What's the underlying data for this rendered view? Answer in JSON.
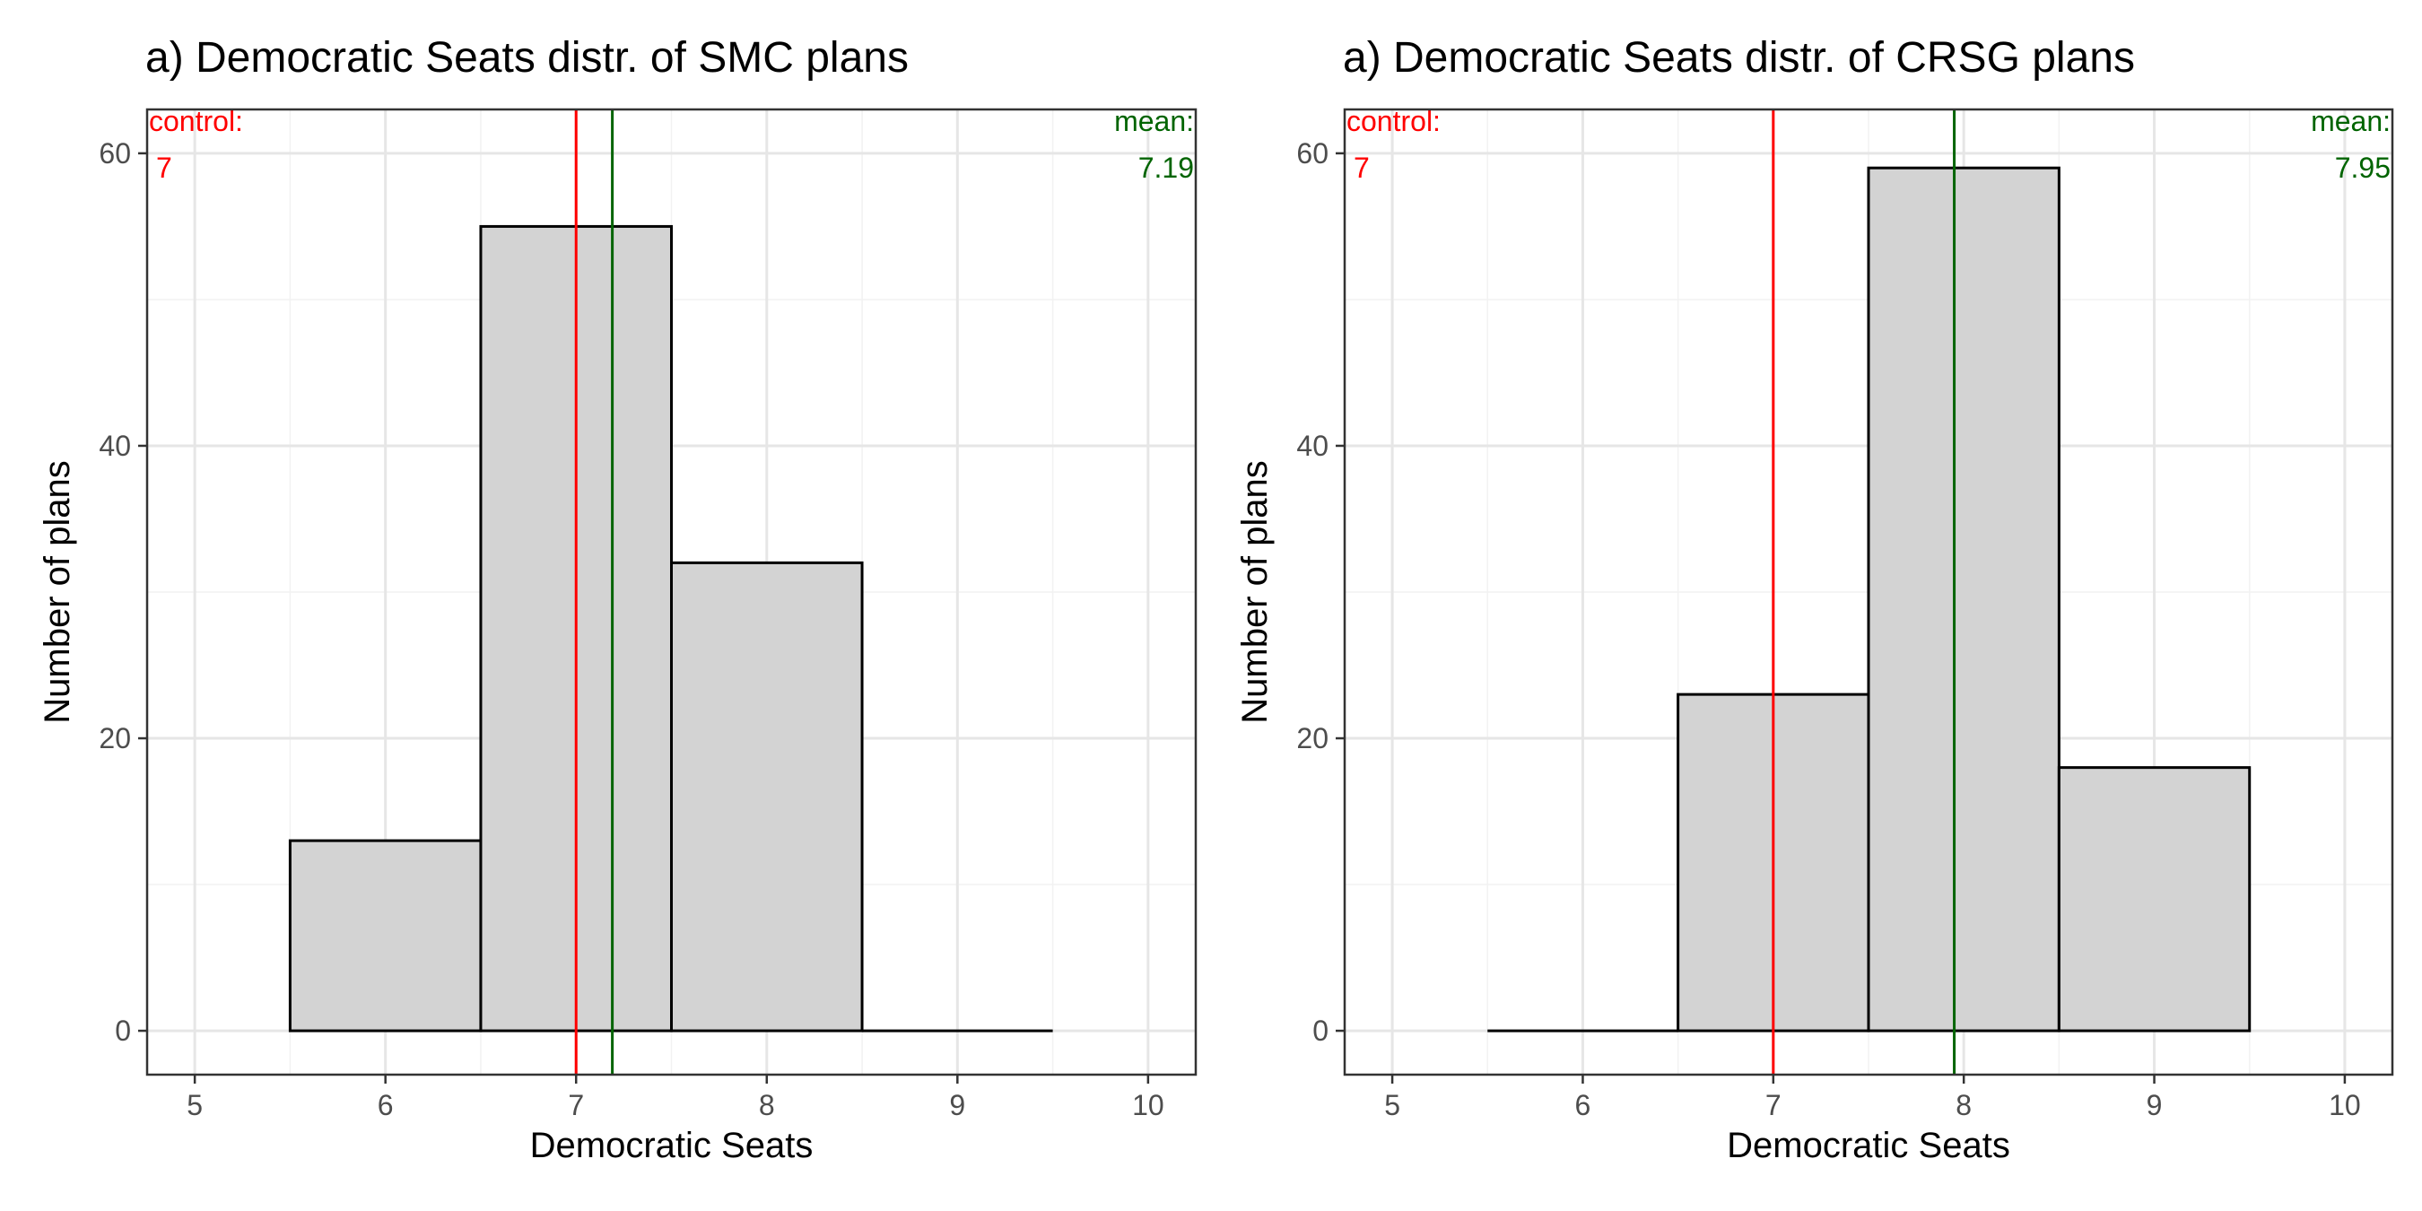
{
  "chart_data": [
    {
      "type": "bar",
      "title": "a) Democratic Seats distr. of SMC plans",
      "xlabel": "Democratic Seats",
      "ylabel": "Number of plans",
      "xlim": [
        4.75,
        10.25
      ],
      "ylim": [
        -3,
        63
      ],
      "xticks": [
        "5",
        "6",
        "7",
        "8",
        "9",
        "10"
      ],
      "yticks": [
        "0",
        "20",
        "40",
        "60"
      ],
      "bin_width": 1,
      "bins": [
        {
          "center": 6,
          "count": 13
        },
        {
          "center": 7,
          "count": 55
        },
        {
          "center": 8,
          "count": 32
        },
        {
          "center": 9,
          "count": 0
        }
      ],
      "vlines": [
        {
          "label": "control:",
          "value_label": "7",
          "x": 7,
          "color": "#ff0000",
          "position": "left"
        },
        {
          "label": "mean:",
          "value_label": "7.19",
          "x": 7.19,
          "color": "#006400",
          "position": "right"
        }
      ],
      "grid": true,
      "bar_fill": "#d3d3d3",
      "bar_stroke": "#000000"
    },
    {
      "type": "bar",
      "title": "a) Democratic Seats distr. of CRSG plans",
      "xlabel": "Democratic Seats",
      "ylabel": "Number of plans",
      "xlim": [
        4.75,
        10.25
      ],
      "ylim": [
        -3,
        63
      ],
      "xticks": [
        "5",
        "6",
        "7",
        "8",
        "9",
        "10"
      ],
      "yticks": [
        "0",
        "20",
        "40",
        "60"
      ],
      "bin_width": 1,
      "bins": [
        {
          "center": 6,
          "count": 0
        },
        {
          "center": 7,
          "count": 23
        },
        {
          "center": 8,
          "count": 59
        },
        {
          "center": 9,
          "count": 18
        }
      ],
      "vlines": [
        {
          "label": "control:",
          "value_label": "7",
          "x": 7,
          "color": "#ff0000",
          "position": "left"
        },
        {
          "label": "mean:",
          "value_label": "7.95",
          "x": 7.95,
          "color": "#006400",
          "position": "right"
        }
      ],
      "grid": true,
      "bar_fill": "#d3d3d3",
      "bar_stroke": "#000000"
    }
  ]
}
